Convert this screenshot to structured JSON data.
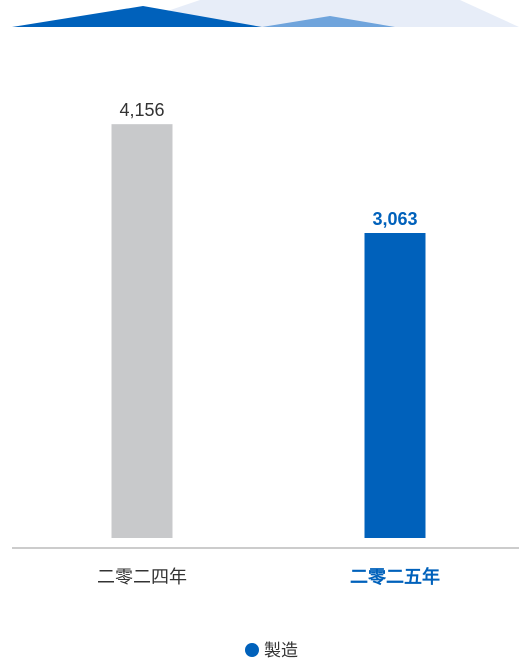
{
  "colors": {
    "accent": "#0061bb",
    "accent_light": "#6fa4dc",
    "accent_pale": "#e7edf8",
    "previous": "#c8c9cb",
    "axis": "#9a9a9a",
    "text": "#333333"
  },
  "chart_data": {
    "type": "bar",
    "categories": [
      "二零二四年",
      "二零二五年"
    ],
    "series": [
      {
        "name": "製造",
        "values": [
          4156,
          3063
        ]
      }
    ],
    "value_labels": [
      "4,156",
      "3,063"
    ],
    "highlight_index": 1,
    "ylim": [
      0,
      4700
    ],
    "grid": false,
    "legend_position": "bottom-center",
    "title": "",
    "xlabel": "",
    "ylabel": ""
  }
}
